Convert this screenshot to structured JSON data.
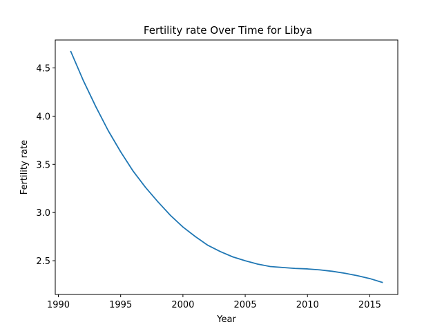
{
  "chart_data": {
    "type": "line",
    "title": "Fertility rate Over Time for Libya",
    "xlabel": "Year",
    "ylabel": "Fertility rate",
    "xlim": [
      1989.75,
      2017.25
    ],
    "ylim": [
      2.15,
      4.79
    ],
    "xticks": [
      1990,
      1995,
      2000,
      2005,
      2010,
      2015
    ],
    "yticks": [
      2.5,
      3.0,
      3.5,
      4.0,
      4.5
    ],
    "grid": false,
    "series": [
      {
        "color": "#1f77b4",
        "x": [
          1991,
          1992,
          1993,
          1994,
          1995,
          1996,
          1997,
          1998,
          1999,
          2000,
          2001,
          2002,
          2003,
          2004,
          2005,
          2006,
          2007,
          2008,
          2009,
          2010,
          2011,
          2012,
          2013,
          2014,
          2015,
          2016
        ],
        "y": [
          4.67,
          4.37,
          4.1,
          3.85,
          3.63,
          3.43,
          3.26,
          3.11,
          2.97,
          2.85,
          2.75,
          2.66,
          2.595,
          2.54,
          2.5,
          2.465,
          2.44,
          2.43,
          2.42,
          2.415,
          2.405,
          2.39,
          2.37,
          2.345,
          2.315,
          2.275
        ]
      }
    ]
  }
}
